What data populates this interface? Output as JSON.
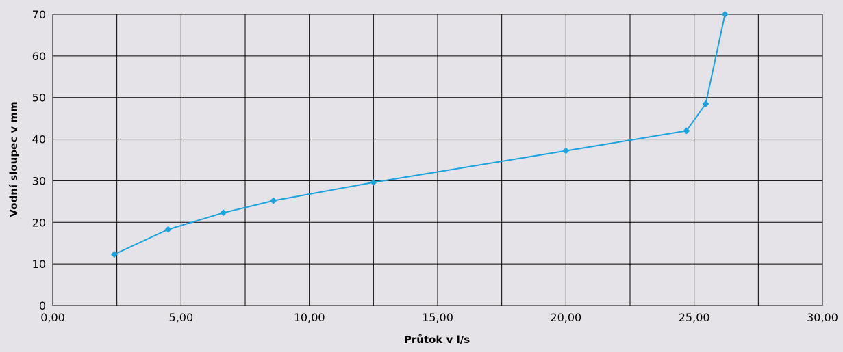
{
  "chart_data": {
    "type": "line",
    "title": "",
    "xlabel": "Průtok v l/s",
    "ylabel": "Vodní sloupec v mm",
    "xlim": [
      0,
      30
    ],
    "ylim": [
      0,
      70
    ],
    "x_ticks": [
      0,
      5,
      10,
      15,
      20,
      25,
      30
    ],
    "x_tick_labels": [
      "0,00",
      "5,00",
      "10,00",
      "15,00",
      "20,00",
      "25,00",
      "30,00"
    ],
    "x_gridlines": [
      0,
      2.5,
      5,
      7.5,
      10,
      12.5,
      15,
      17.5,
      20,
      22.5,
      25,
      27.5,
      30
    ],
    "y_ticks": [
      0,
      10,
      20,
      30,
      40,
      50,
      60,
      70
    ],
    "y_tick_labels": [
      "0",
      "10",
      "20",
      "30",
      "40",
      "50",
      "60",
      "70"
    ],
    "grid": true,
    "legend": "none",
    "colors": {
      "series": "#1aa3de",
      "grid": "#000000",
      "background": "#e5e3e7",
      "text": "#000000"
    },
    "series": [
      {
        "marker": "diamond",
        "x": [
          2.4,
          4.5,
          6.65,
          8.6,
          12.5,
          20.0,
          24.7,
          25.45,
          26.2
        ],
        "y": [
          12.3,
          18.3,
          22.3,
          25.2,
          29.6,
          37.2,
          42.0,
          48.5,
          70.0
        ]
      }
    ]
  }
}
